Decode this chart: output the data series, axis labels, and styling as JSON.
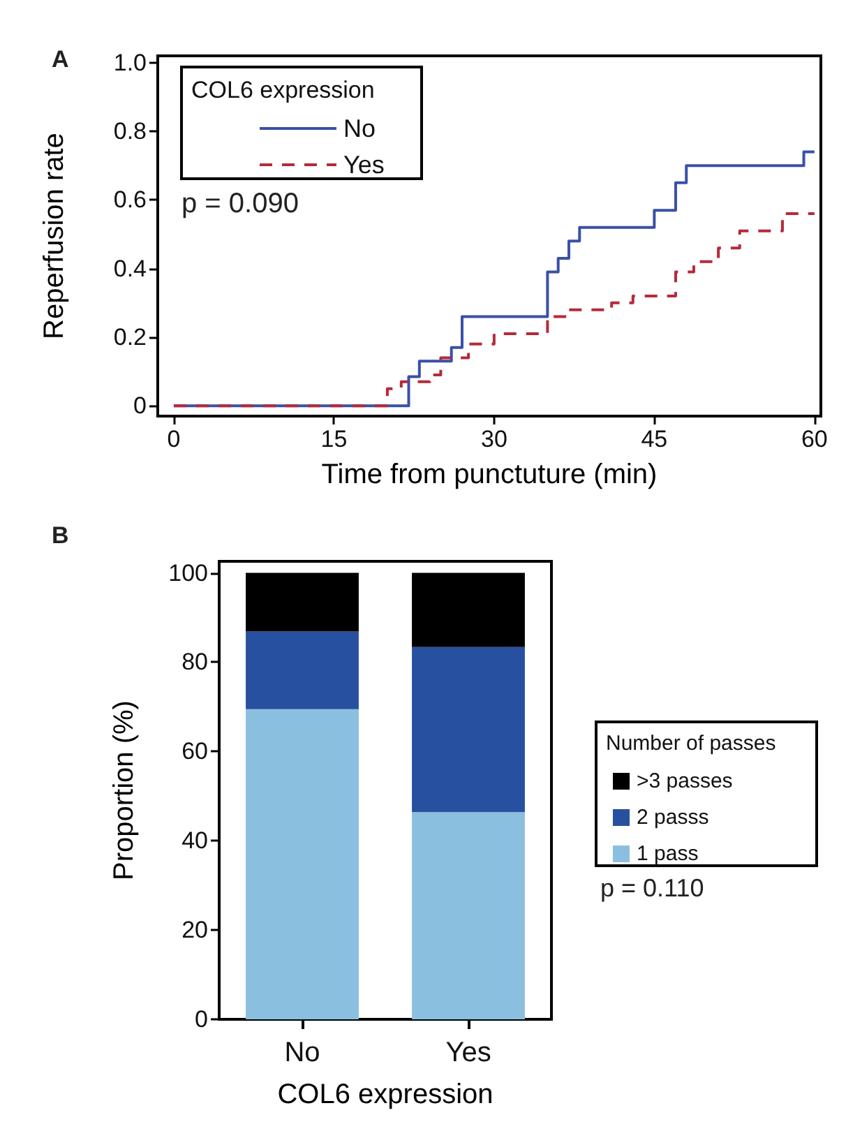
{
  "chart_data": [
    {
      "type": "step",
      "xlabel": "Time from punctuture (min)",
      "ylabel": "Reperfusion rate",
      "legend_title": "COL6 expression",
      "annotations": [
        "A",
        "p = 0.090"
      ],
      "series": [
        {
          "name": "No",
          "color": "#3a50a8",
          "line_style": "solid",
          "x": [
            0,
            22,
            23,
            26,
            27,
            35,
            36,
            37,
            38,
            45,
            47,
            48,
            59,
            60
          ],
          "values": [
            0,
            0.085,
            0.13,
            0.17,
            0.26,
            0.39,
            0.43,
            0.48,
            0.52,
            0.57,
            0.65,
            0.7,
            0.74,
            0.74
          ]
        },
        {
          "name": "Yes",
          "color": "#b52a3a",
          "line_style": "dashed",
          "x": [
            0,
            20,
            21.3,
            24,
            25,
            27.6,
            30,
            35,
            37,
            41,
            43,
            47,
            48.7,
            51,
            53,
            57,
            60
          ],
          "values": [
            0,
            0.05,
            0.07,
            0.09,
            0.14,
            0.18,
            0.21,
            0.26,
            0.28,
            0.3,
            0.32,
            0.39,
            0.42,
            0.46,
            0.51,
            0.56,
            0.56
          ]
        }
      ],
      "xlim": [
        -1.5,
        60.6
      ],
      "xticks": [
        0,
        15,
        30,
        45,
        60
      ],
      "ylim": [
        -0.03,
        1.02
      ],
      "yticks": [
        0,
        0.2,
        0.4,
        0.6,
        0.8,
        {
          "value": 1,
          "label": "1.0"
        }
      ],
      "legend": "top left",
      "marker": "none",
      "grid": false
    },
    {
      "type": "bar",
      "stacked": true,
      "xlabel": "COL6 expression",
      "ylabel": "Proportion (%)",
      "legend_title": "Number of passes",
      "annotations": [
        "B",
        "p = 0.110"
      ],
      "categories": [
        "No",
        "Yes"
      ],
      "series": [
        {
          "name": "1 pass",
          "color": "#8bbfdf",
          "values": [
            69.5,
            46.4
          ]
        },
        {
          "name": "2 passs",
          "color": "#2850a0",
          "values": [
            17.4,
            37.0
          ]
        },
        {
          "name": ">3 passes",
          "color": "#000000",
          "values": [
            13.1,
            16.6
          ]
        }
      ],
      "ylim": [
        0,
        102.6
      ],
      "yticks": [
        0,
        20,
        40,
        60,
        80,
        100
      ],
      "legend": "right",
      "grid": false
    }
  ]
}
